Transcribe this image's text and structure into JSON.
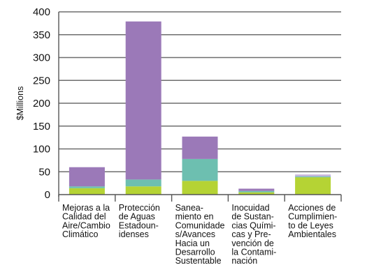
{
  "chart_data": {
    "type": "bar",
    "stacked": true,
    "ylabel": "$Millions",
    "ylim": [
      0,
      400
    ],
    "yticks": [
      0,
      50,
      100,
      150,
      200,
      250,
      300,
      350,
      400
    ],
    "grid": true,
    "legend": "none",
    "categories": [
      [
        "Mejoras a la",
        "Calidad del",
        "Aire/Cambio",
        "Climático"
      ],
      [
        "Protección",
        "de Aguas",
        "Estadoun-",
        "idenses"
      ],
      [
        "Sanea-",
        "miento en",
        "Comunidade",
        "s/Avances",
        "Hacia un",
        "Desarrollo",
        "Sustentable"
      ],
      [
        "Inocuidad",
        "de Sustan-",
        "cias Quími-",
        "cas y Pre-",
        "vención de",
        "la Contami-",
        "nación"
      ],
      [
        "Acciones de",
        "Cumplimien-",
        "to de Leyes",
        "Ambientales"
      ]
    ],
    "series": [
      {
        "color": "#b5d334",
        "values": [
          14,
          18,
          30,
          5,
          38
        ]
      },
      {
        "color": "#6dbfb0",
        "values": [
          4,
          15,
          48,
          3,
          2
        ]
      },
      {
        "color": "#9b79b8",
        "values": [
          42,
          346,
          49,
          5,
          0
        ]
      },
      {
        "color": "#c4b3d9",
        "values": [
          0,
          0,
          0,
          0,
          4
        ]
      }
    ]
  }
}
